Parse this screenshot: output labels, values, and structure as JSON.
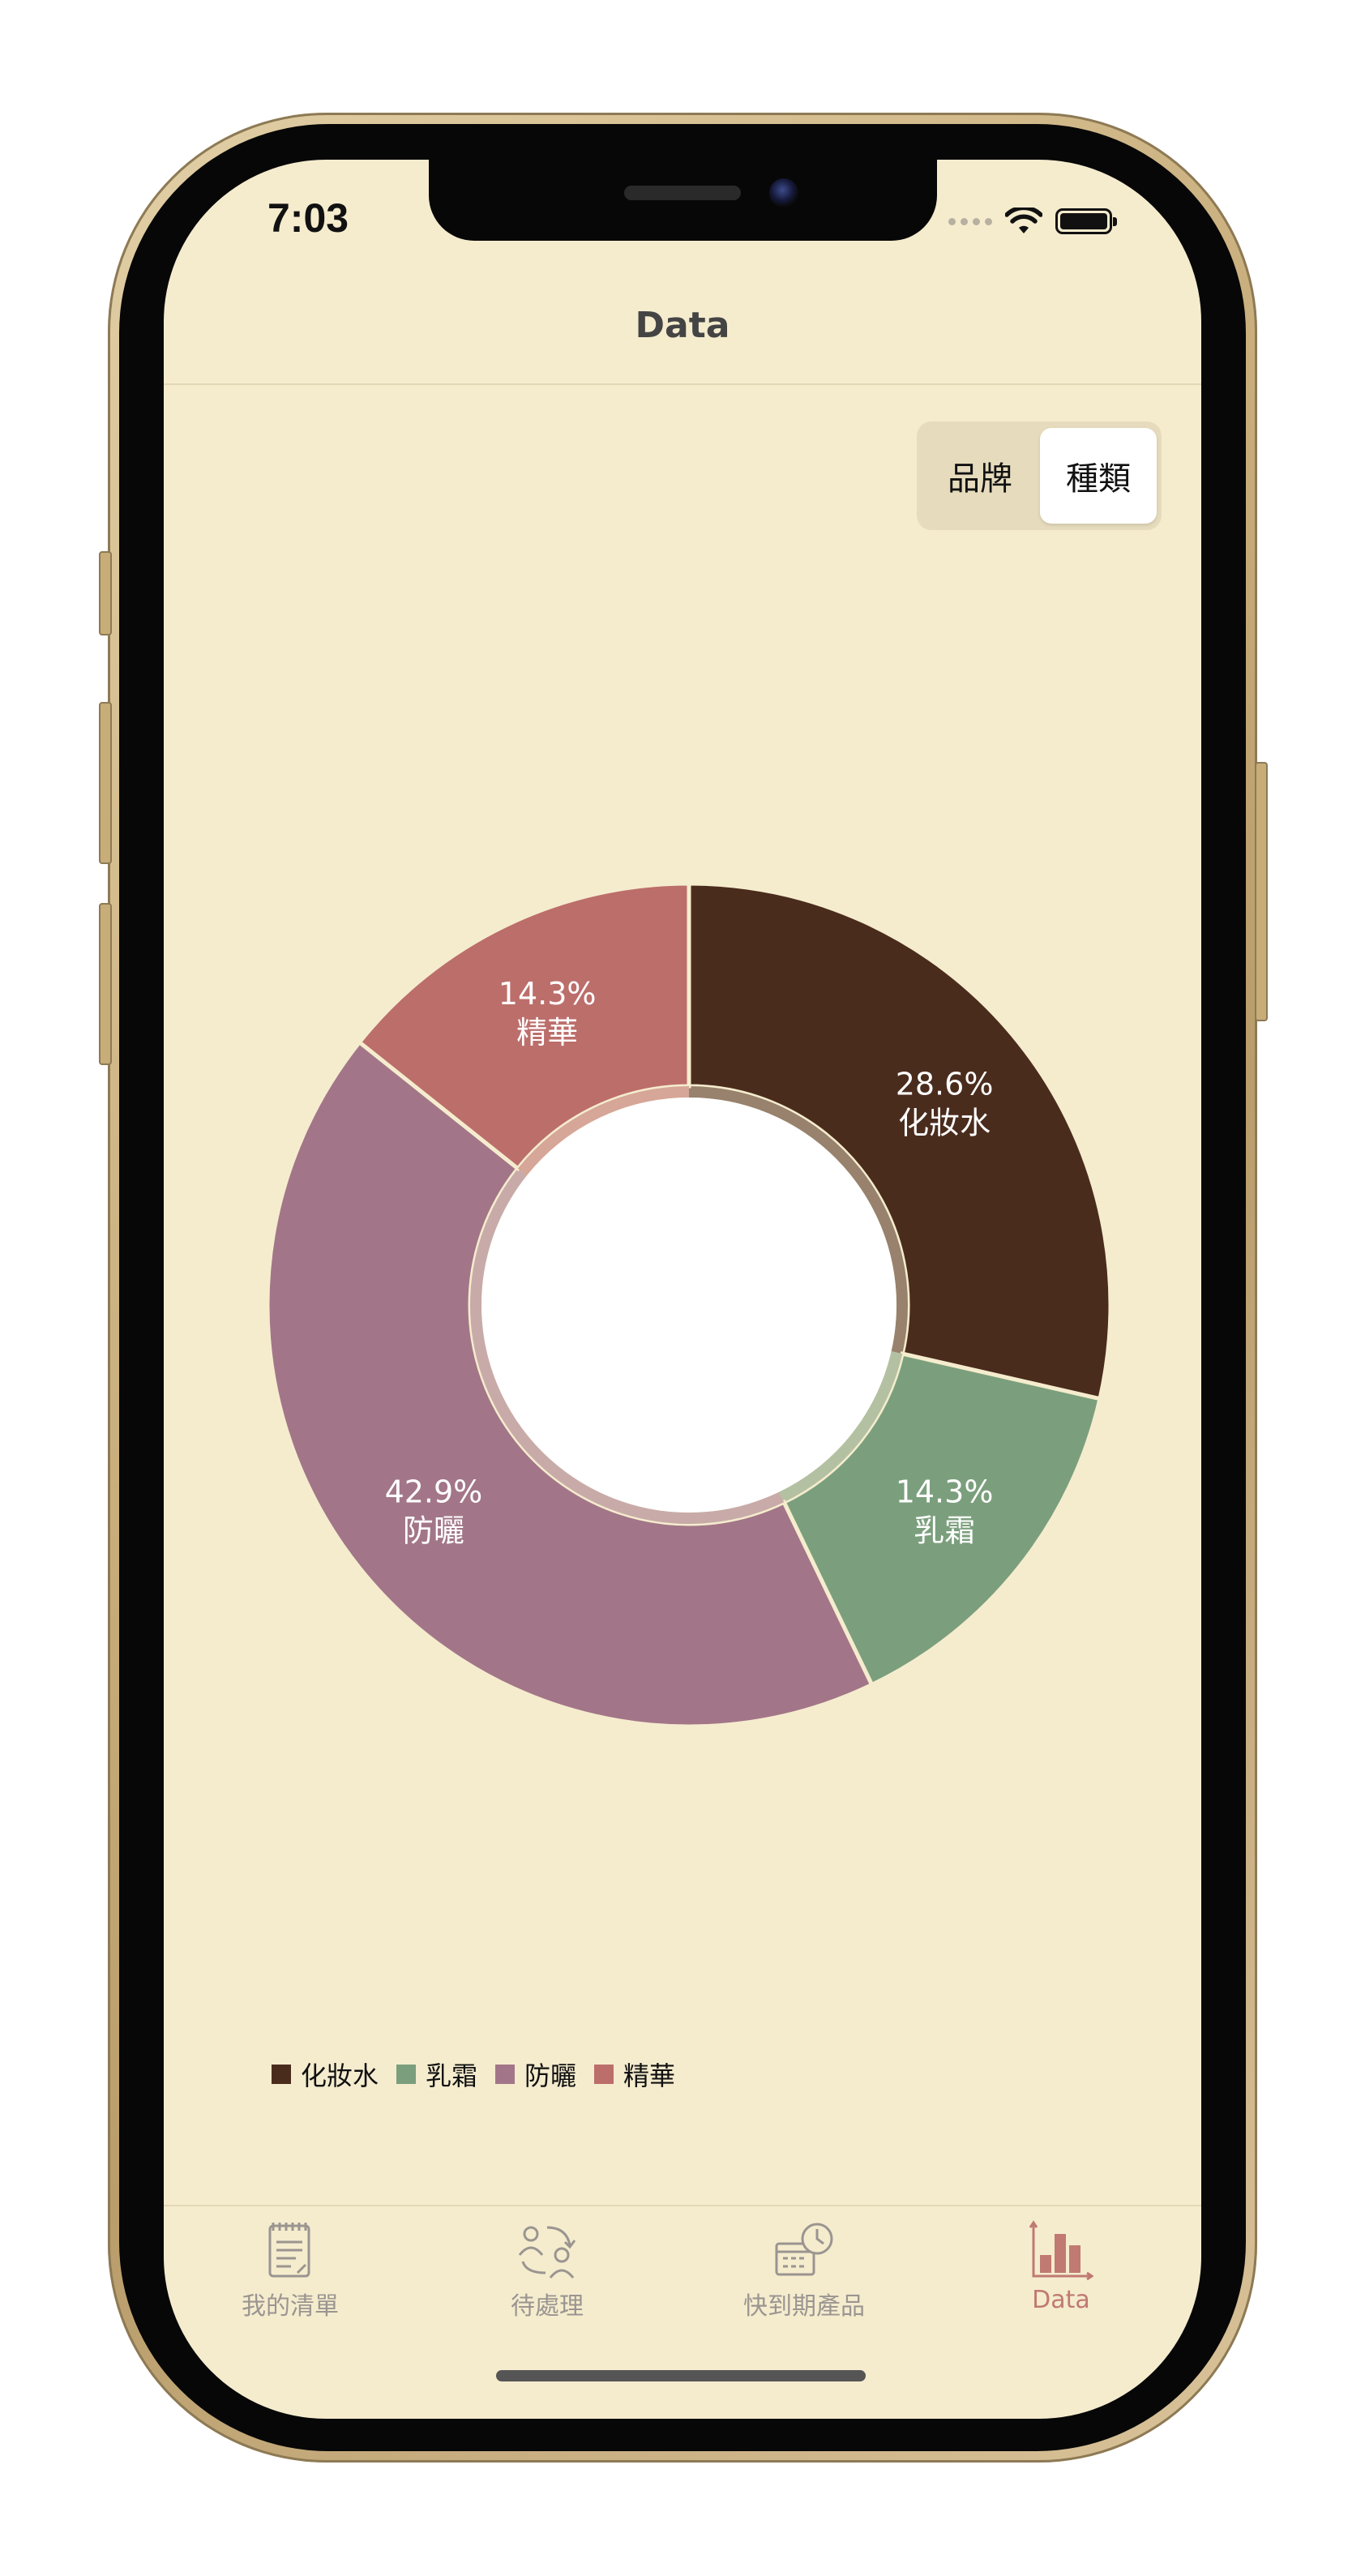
{
  "status_bar": {
    "time": "7:03"
  },
  "nav": {
    "title": "Data"
  },
  "segmented_control": {
    "options": [
      {
        "label": "品牌",
        "selected": false
      },
      {
        "label": "種類",
        "selected": true
      }
    ]
  },
  "chart_data": {
    "type": "pie",
    "style": "donut",
    "categories": [
      "化妝水",
      "乳霜",
      "防曬",
      "精華"
    ],
    "values": [
      28.6,
      14.3,
      42.9,
      14.3
    ],
    "labels": [
      "28.6%",
      "14.3%",
      "42.9%",
      "14.3%"
    ],
    "colors": [
      "#4a2c1d",
      "#7b9f7d",
      "#a27688",
      "#bc6e6b"
    ],
    "legend_position": "bottom-left"
  },
  "legend": {
    "items": [
      {
        "label": "化妝水",
        "color": "#4a2c1d"
      },
      {
        "label": "乳霜",
        "color": "#7b9f7d"
      },
      {
        "label": "防曬",
        "color": "#a27688"
      },
      {
        "label": "精華",
        "color": "#bc6e6b"
      }
    ]
  },
  "tab_bar": {
    "items": [
      {
        "label": "我的清單",
        "icon": "checklist-icon",
        "active": false
      },
      {
        "label": "待處理",
        "icon": "pending-icon",
        "active": false
      },
      {
        "label": "快到期產品",
        "icon": "expiring-calendar-icon",
        "active": false
      },
      {
        "label": "Data",
        "icon": "bar-chart-icon",
        "active": true
      }
    ],
    "active_color": "#c07a72",
    "inactive_color": "#9a9590"
  }
}
